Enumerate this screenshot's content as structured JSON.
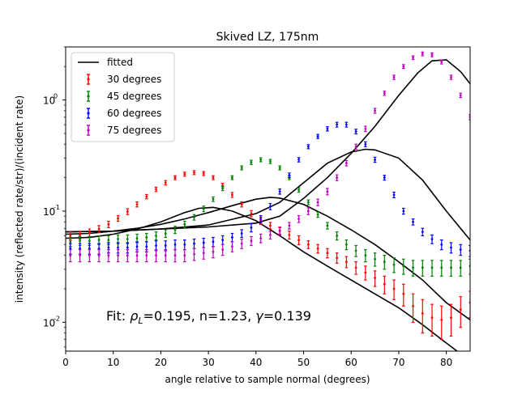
{
  "chart_data": {
    "type": "scatter",
    "title": "Skived LZ, 175nm",
    "xlabel": "angle relative to sample normal (degrees)",
    "ylabel": "intensity (reflected rate/str)/(incident rate)",
    "xlim": [
      0,
      85
    ],
    "ylim": [
      0.0055,
      3.0
    ],
    "yscale": "log",
    "grid": false,
    "legend_position": "top-left",
    "x_ticks": [
      0,
      10,
      20,
      30,
      40,
      50,
      60,
      70,
      80
    ],
    "x_tick_labels": [
      "0",
      "10",
      "20",
      "30",
      "40",
      "50",
      "60",
      "70",
      "80"
    ],
    "y_ticks": [
      0.01,
      0.1,
      1
    ],
    "y_tick_labels": [
      "10",
      "10",
      "10"
    ],
    "y_tick_exponents": [
      "-2",
      "-1",
      "0"
    ],
    "annotation": {
      "prefix": "Fit: ",
      "rho_symbol": "ρ",
      "rho_sub": "L",
      "rest": "=0.195, n=1.23, ",
      "gamma_symbol": "γ",
      "gamma_value": "=0.139"
    },
    "fitted": {
      "name": "fitted",
      "color": "#000000",
      "curves": [
        {
          "x": [
            0,
            5,
            10,
            15,
            20,
            25,
            28,
            31,
            35,
            40,
            45,
            50,
            55,
            60,
            65,
            70,
            75,
            80,
            83
          ],
          "y": [
            0.057,
            0.058,
            0.062,
            0.069,
            0.08,
            0.097,
            0.106,
            0.108,
            0.1,
            0.082,
            0.06,
            0.043,
            0.032,
            0.024,
            0.018,
            0.0135,
            0.0095,
            0.0065,
            0.0052
          ]
        },
        {
          "x": [
            0,
            5,
            10,
            15,
            20,
            25,
            30,
            35,
            40,
            43,
            45,
            50,
            55,
            60,
            65,
            70,
            75,
            80,
            85
          ],
          "y": [
            0.062,
            0.063,
            0.066,
            0.07,
            0.076,
            0.085,
            0.097,
            0.112,
            0.128,
            0.133,
            0.131,
            0.115,
            0.09,
            0.068,
            0.05,
            0.035,
            0.024,
            0.015,
            0.0105
          ]
        },
        {
          "x": [
            0,
            10,
            20,
            30,
            40,
            45,
            50,
            55,
            60,
            63,
            65,
            70,
            75,
            80,
            85
          ],
          "y": [
            0.065,
            0.066,
            0.069,
            0.075,
            0.095,
            0.12,
            0.18,
            0.27,
            0.34,
            0.36,
            0.355,
            0.3,
            0.19,
            0.1,
            0.055
          ]
        },
        {
          "x": [
            0,
            10,
            20,
            30,
            40,
            45,
            50,
            55,
            60,
            65,
            70,
            74,
            77,
            80,
            83,
            85
          ],
          "y": [
            0.065,
            0.066,
            0.069,
            0.072,
            0.078,
            0.09,
            0.13,
            0.2,
            0.33,
            0.58,
            1.1,
            1.75,
            2.25,
            2.3,
            1.8,
            1.4
          ]
        }
      ]
    },
    "series": [
      {
        "name": "30 degrees",
        "color": "#ff0000",
        "x": [
          1,
          3,
          5,
          7,
          9,
          11,
          13,
          15,
          17,
          19,
          21,
          23,
          25,
          27,
          29,
          31,
          33,
          35,
          37,
          39,
          41,
          43,
          45,
          47,
          49,
          51,
          53,
          55,
          57,
          59,
          61,
          63,
          65,
          67,
          69,
          71,
          73,
          75,
          77,
          79,
          81,
          83,
          85
        ],
        "y": [
          0.06,
          0.061,
          0.064,
          0.069,
          0.076,
          0.086,
          0.099,
          0.115,
          0.135,
          0.157,
          0.18,
          0.2,
          0.215,
          0.222,
          0.218,
          0.2,
          0.17,
          0.14,
          0.115,
          0.095,
          0.082,
          0.074,
          0.067,
          0.061,
          0.055,
          0.05,
          0.046,
          0.042,
          0.038,
          0.035,
          0.031,
          0.028,
          0.025,
          0.022,
          0.02,
          0.018,
          0.014,
          0.012,
          0.011,
          0.0105,
          0.011,
          0.013,
          0.015
        ],
        "yerr": [
          0.005,
          0.005,
          0.005,
          0.005,
          0.005,
          0.005,
          0.006,
          0.006,
          0.006,
          0.007,
          0.008,
          0.008,
          0.009,
          0.009,
          0.009,
          0.008,
          0.008,
          0.007,
          0.006,
          0.006,
          0.006,
          0.005,
          0.005,
          0.005,
          0.005,
          0.004,
          0.004,
          0.004,
          0.004,
          0.004,
          0.004,
          0.004,
          0.004,
          0.004,
          0.004,
          0.004,
          0.004,
          0.004,
          0.0035,
          0.0035,
          0.0035,
          0.004,
          0.004
        ]
      },
      {
        "name": "45 degrees",
        "color": "#008000",
        "x": [
          1,
          3,
          5,
          7,
          9,
          11,
          13,
          15,
          17,
          19,
          21,
          23,
          25,
          27,
          29,
          31,
          33,
          35,
          37,
          39,
          41,
          43,
          45,
          47,
          49,
          51,
          53,
          55,
          57,
          59,
          61,
          63,
          65,
          67,
          69,
          71,
          73,
          75,
          77,
          79,
          81,
          83,
          85
        ],
        "y": [
          0.053,
          0.054,
          0.054,
          0.055,
          0.055,
          0.056,
          0.056,
          0.057,
          0.058,
          0.06,
          0.063,
          0.068,
          0.076,
          0.088,
          0.105,
          0.128,
          0.16,
          0.2,
          0.245,
          0.275,
          0.29,
          0.28,
          0.245,
          0.2,
          0.155,
          0.12,
          0.093,
          0.074,
          0.06,
          0.05,
          0.044,
          0.04,
          0.037,
          0.035,
          0.033,
          0.032,
          0.031,
          0.031,
          0.031,
          0.031,
          0.031,
          0.031,
          0.032
        ],
        "yerr": [
          0.005,
          0.005,
          0.005,
          0.005,
          0.005,
          0.005,
          0.005,
          0.005,
          0.005,
          0.005,
          0.005,
          0.005,
          0.005,
          0.005,
          0.006,
          0.006,
          0.007,
          0.008,
          0.01,
          0.012,
          0.012,
          0.012,
          0.01,
          0.008,
          0.007,
          0.006,
          0.005,
          0.005,
          0.005,
          0.005,
          0.005,
          0.005,
          0.005,
          0.005,
          0.005,
          0.005,
          0.005,
          0.005,
          0.005,
          0.005,
          0.005,
          0.005,
          0.005
        ]
      },
      {
        "name": "60 degrees",
        "color": "#0000ff",
        "x": [
          1,
          3,
          5,
          7,
          9,
          11,
          13,
          15,
          17,
          19,
          21,
          23,
          25,
          27,
          29,
          31,
          33,
          35,
          37,
          39,
          41,
          43,
          45,
          47,
          49,
          51,
          53,
          55,
          57,
          59,
          61,
          63,
          65,
          67,
          69,
          71,
          73,
          75,
          77,
          79,
          81,
          83,
          85
        ],
        "y": [
          0.046,
          0.046,
          0.046,
          0.046,
          0.047,
          0.047,
          0.047,
          0.048,
          0.048,
          0.049,
          0.049,
          0.05,
          0.05,
          0.051,
          0.052,
          0.053,
          0.055,
          0.058,
          0.063,
          0.071,
          0.085,
          0.11,
          0.15,
          0.21,
          0.29,
          0.38,
          0.47,
          0.55,
          0.6,
          0.6,
          0.52,
          0.4,
          0.29,
          0.2,
          0.14,
          0.1,
          0.08,
          0.065,
          0.056,
          0.05,
          0.047,
          0.045,
          0.044
        ],
        "yerr": [
          0.005,
          0.005,
          0.005,
          0.005,
          0.005,
          0.005,
          0.005,
          0.005,
          0.005,
          0.005,
          0.005,
          0.005,
          0.005,
          0.005,
          0.005,
          0.005,
          0.005,
          0.005,
          0.005,
          0.006,
          0.006,
          0.007,
          0.008,
          0.01,
          0.013,
          0.016,
          0.02,
          0.025,
          0.03,
          0.03,
          0.025,
          0.02,
          0.015,
          0.01,
          0.008,
          0.006,
          0.005,
          0.005,
          0.005,
          0.005,
          0.005,
          0.005,
          0.005
        ]
      },
      {
        "name": "75 degrees",
        "color": "#bf00bf",
        "x": [
          1,
          3,
          5,
          7,
          9,
          11,
          13,
          15,
          17,
          19,
          21,
          23,
          25,
          27,
          29,
          31,
          33,
          35,
          37,
          39,
          41,
          43,
          45,
          47,
          49,
          51,
          53,
          55,
          57,
          59,
          61,
          63,
          65,
          67,
          69,
          71,
          73,
          75,
          77,
          79,
          81,
          83,
          85
        ],
        "y": [
          0.04,
          0.04,
          0.04,
          0.04,
          0.04,
          0.04,
          0.04,
          0.04,
          0.04,
          0.04,
          0.04,
          0.04,
          0.04,
          0.041,
          0.042,
          0.043,
          0.045,
          0.048,
          0.051,
          0.054,
          0.057,
          0.061,
          0.066,
          0.074,
          0.085,
          0.1,
          0.12,
          0.15,
          0.2,
          0.27,
          0.38,
          0.55,
          0.8,
          1.15,
          1.6,
          2.0,
          2.4,
          2.6,
          2.55,
          2.2,
          1.6,
          1.1,
          0.7
        ],
        "yerr": [
          0.005,
          0.005,
          0.005,
          0.005,
          0.005,
          0.005,
          0.005,
          0.005,
          0.005,
          0.005,
          0.005,
          0.005,
          0.005,
          0.005,
          0.005,
          0.005,
          0.005,
          0.005,
          0.005,
          0.005,
          0.005,
          0.005,
          0.005,
          0.005,
          0.006,
          0.007,
          0.008,
          0.01,
          0.012,
          0.015,
          0.02,
          0.03,
          0.04,
          0.05,
          0.07,
          0.08,
          0.09,
          0.1,
          0.1,
          0.09,
          0.07,
          0.05,
          0.035
        ]
      }
    ]
  }
}
